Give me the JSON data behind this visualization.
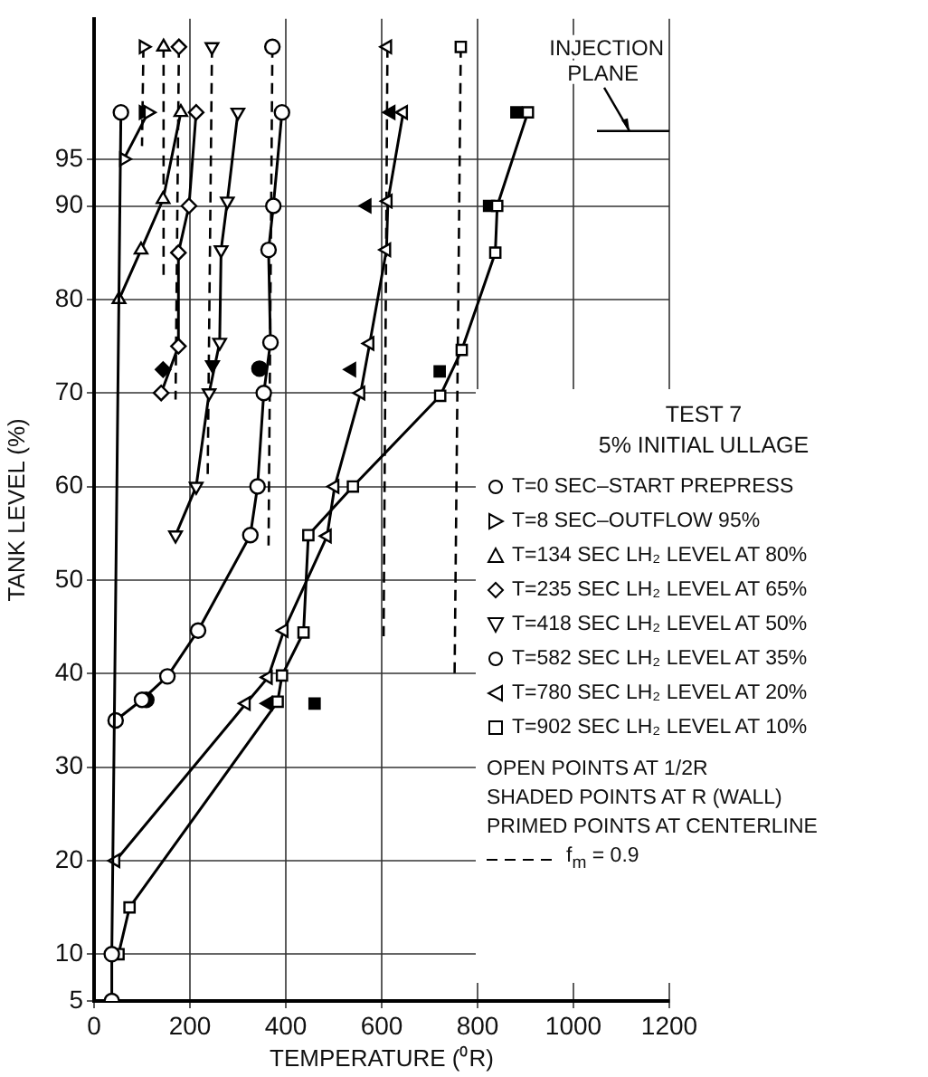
{
  "chart_data": {
    "type": "line",
    "xlabel": "TEMPERATURE (⁰R)",
    "ylabel": "TANK LEVEL (%)",
    "legend_title": "TEST 7\n5% INITIAL ULLAGE",
    "xlim": [
      0,
      1200
    ],
    "xticks": [
      0,
      200,
      400,
      600,
      800,
      1000,
      1200
    ],
    "ylim": [
      5,
      110
    ],
    "yticks": [
      5,
      10,
      20,
      30,
      40,
      50,
      60,
      70,
      80,
      90,
      95
    ],
    "grid": true,
    "legend": "bottom right",
    "ref_lines": [
      {
        "axis": "y",
        "value": 98,
        "label": "INJECTION PLANE"
      }
    ],
    "annotations": [
      "OPEN POINTS AT 1/2R",
      "SHADED POINTS AT R (WALL)",
      "PRIMED POINTS AT CENTERLINE"
    ],
    "series": [
      {
        "name": "T=0 SEC–START PREPRESS",
        "marker": "circle",
        "color": "#000000",
        "x": [
          56,
          37,
          37
        ],
        "values": [
          100,
          10,
          5
        ]
      },
      {
        "name": "T=8 SEC–OUTFLOW 95%",
        "marker": "triangle-right",
        "color": "#000000",
        "x": [
          113,
          62
        ],
        "values": [
          100,
          95
        ]
      },
      {
        "name": "T=134 SEC LH₂ LEVEL AT 80%",
        "marker": "triangle",
        "color": "#000000",
        "x": [
          181,
          144,
          98,
          52
        ],
        "values": [
          100,
          90.7,
          85.3,
          80
        ]
      },
      {
        "name": "T=235 SEC LH₂ LEVEL AT 65%",
        "marker": "diamond",
        "color": "#000000",
        "x": [
          213,
          198,
          176,
          176,
          140
        ],
        "values": [
          100,
          90,
          85,
          75,
          70
        ]
      },
      {
        "name": "T=418 SEC LH₂ LEVEL AT 50%",
        "marker": "triangle-down",
        "color": "#000000",
        "x": [
          300,
          278,
          265,
          262,
          240,
          213,
          170
        ],
        "values": [
          100,
          90.5,
          85.3,
          75.4,
          70,
          60,
          54.8
        ]
      },
      {
        "name": "T=582 SEC LH₂ LEVEL AT 35%",
        "marker": "circle",
        "color": "#000000",
        "x": [
          392,
          374,
          364,
          368,
          354,
          341,
          326,
          217,
          153,
          100,
          45
        ],
        "values": [
          100,
          90,
          85.3,
          75.4,
          70,
          60,
          54.8,
          44.6,
          39.7,
          37.2,
          35
        ]
      },
      {
        "name": "T=780 SEC LH₂ LEVEL AT 20%",
        "marker": "triangle-left",
        "color": "#000000",
        "x": [
          645,
          613,
          610,
          575,
          556,
          502,
          486,
          396,
          363,
          317,
          45
        ],
        "values": [
          100,
          90.5,
          85.3,
          75.3,
          70,
          60,
          54.7,
          44.6,
          39.6,
          36.8,
          20
        ]
      },
      {
        "name": "T=902 SEC LH₂ LEVEL AT 10%",
        "marker": "square",
        "color": "#000000",
        "x": [
          905,
          841,
          837,
          767,
          722,
          540,
          447,
          437,
          392,
          383,
          74,
          51
        ],
        "values": [
          100,
          90,
          85,
          74.6,
          69.7,
          60,
          54.8,
          44.4,
          39.8,
          37,
          15,
          10
        ]
      },
      {
        "type": "scatter",
        "marker": "triangle-right",
        "color": "#000000",
        "x": [
          103
        ],
        "values": [
          100
        ]
      },
      {
        "type": "scatter",
        "marker": "diamond",
        "color": "#000000",
        "x": [
          144
        ],
        "values": [
          72.5
        ]
      },
      {
        "type": "scatter",
        "marker": "triangle-down",
        "color": "#000000",
        "x": [
          247
        ],
        "values": [
          73
        ]
      },
      {
        "type": "scatter",
        "marker": "circle",
        "color": "#000000",
        "x": [
          345,
          109
        ],
        "values": [
          72.6,
          37.2
        ]
      },
      {
        "type": "scatter",
        "marker": "triangle-left",
        "color": "#000000",
        "x": [
          619,
          569,
          537,
          363
        ],
        "values": [
          100,
          90,
          72.5,
          36.8
        ]
      },
      {
        "type": "scatter",
        "marker": "square",
        "color": "#000000",
        "x": [
          881,
          824,
          721,
          460
        ],
        "values": [
          100,
          90,
          72.3,
          36.8
        ]
      },
      {
        "name": "f$_{m}$ = 0.9",
        "type": "line",
        "line_style": "dashed",
        "marker": "triangle-right",
        "color": "#000000",
        "x": [
          103,
          100
        ],
        "values": [
          107,
          96.4
        ]
      },
      {
        "type": "line",
        "line_style": "dashed",
        "marker": "triangle",
        "color": "#000000",
        "x": [
          145,
          145
        ],
        "values": [
          107,
          82.4
        ]
      },
      {
        "type": "line",
        "line_style": "dashed",
        "marker": "diamond",
        "color": "#000000",
        "x": [
          177,
          170
        ],
        "values": [
          107,
          69.3
        ]
      },
      {
        "type": "line",
        "line_style": "dashed",
        "marker": "triangle-down",
        "color": "#000000",
        "x": [
          246,
          237
        ],
        "values": [
          107,
          61
        ]
      },
      {
        "type": "line",
        "line_style": "dashed",
        "marker": "circle",
        "color": "#000000",
        "x": [
          372,
          364
        ],
        "values": [
          107,
          53.7
        ]
      },
      {
        "type": "line",
        "line_style": "dashed",
        "marker": "triangle-left",
        "color": "#000000",
        "x": [
          612,
          604
        ],
        "values": [
          107,
          44
        ]
      },
      {
        "type": "line",
        "line_style": "dashed",
        "marker": "square",
        "color": "#000000",
        "x": [
          765,
          752
        ],
        "values": [
          107,
          39.5
        ]
      }
    ]
  }
}
